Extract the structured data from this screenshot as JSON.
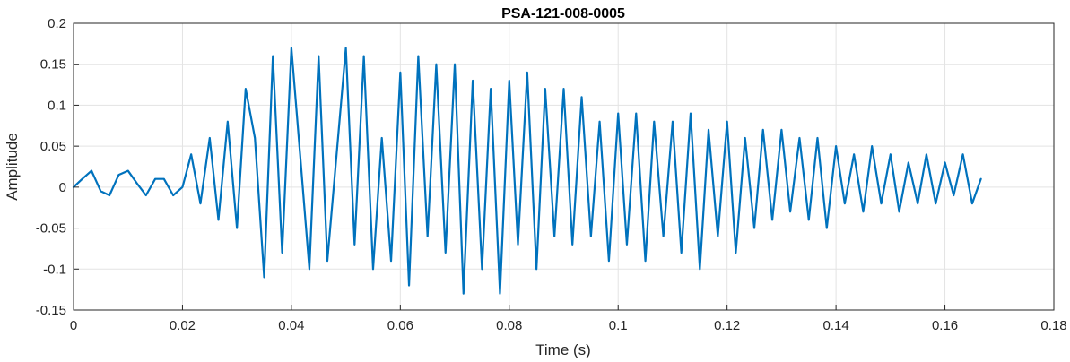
{
  "chart_data": {
    "type": "line",
    "title": "PSA-121-008-0005",
    "xlabel": "Time (s)",
    "ylabel": "Amplitude",
    "xlim": [
      0,
      0.18
    ],
    "ylim": [
      -0.15,
      0.2
    ],
    "grid": true,
    "x_ticks": [
      {
        "value": 0,
        "label": "0"
      },
      {
        "value": 0.02,
        "label": "0.02"
      },
      {
        "value": 0.04,
        "label": "0.04"
      },
      {
        "value": 0.06,
        "label": "0.06"
      },
      {
        "value": 0.08,
        "label": "0.08"
      },
      {
        "value": 0.1,
        "label": "0.1"
      },
      {
        "value": 0.12,
        "label": "0.12"
      },
      {
        "value": 0.14,
        "label": "0.14"
      },
      {
        "value": 0.16,
        "label": "0.16"
      },
      {
        "value": 0.18,
        "label": "0.18"
      }
    ],
    "y_ticks": [
      {
        "value": -0.15,
        "label": "-0.15"
      },
      {
        "value": -0.1,
        "label": "-0.1"
      },
      {
        "value": -0.05,
        "label": "-0.05"
      },
      {
        "value": 0,
        "label": "0"
      },
      {
        "value": 0.05,
        "label": "0.05"
      },
      {
        "value": 0.1,
        "label": "0.1"
      },
      {
        "value": 0.15,
        "label": "0.15"
      },
      {
        "value": 0.2,
        "label": "0.2"
      }
    ],
    "series": [
      {
        "color": "#0072BD",
        "x": [
          0,
          0.0016,
          0.0033,
          0.005,
          0.0066,
          0.0083,
          0.01,
          0.0116,
          0.0133,
          0.015,
          0.0166,
          0.0183,
          0.02,
          0.0216,
          0.0233,
          0.025,
          0.0266,
          0.0283,
          0.03,
          0.0316,
          0.0333,
          0.035,
          0.0366,
          0.0383,
          0.04,
          0.0416,
          0.0433,
          0.045,
          0.0466,
          0.0483,
          0.05,
          0.0516,
          0.0533,
          0.055,
          0.0566,
          0.0583,
          0.06,
          0.0616,
          0.0633,
          0.065,
          0.0666,
          0.0683,
          0.07,
          0.0716,
          0.0733,
          0.075,
          0.0766,
          0.0783,
          0.08,
          0.0816,
          0.0833,
          0.085,
          0.0866,
          0.0883,
          0.09,
          0.0916,
          0.0933,
          0.095,
          0.0966,
          0.0983,
          0.1,
          0.1016,
          0.1033,
          0.105,
          0.1066,
          0.1083,
          0.11,
          0.1116,
          0.1133,
          0.115,
          0.1166,
          0.1183,
          0.12,
          0.1216,
          0.1233,
          0.125,
          0.1266,
          0.1283,
          0.13,
          0.1316,
          0.1333,
          0.135,
          0.1366,
          0.1383,
          0.14,
          0.1416,
          0.1433,
          0.145,
          0.1466,
          0.1483,
          0.15,
          0.1516,
          0.1533,
          0.155,
          0.1566,
          0.1583,
          0.16,
          0.1616,
          0.1633,
          0.165,
          0.1666
        ],
        "y": [
          0.0,
          0.01,
          0.02,
          -0.005,
          -0.01,
          0.015,
          0.02,
          0.005,
          -0.01,
          0.01,
          0.01,
          -0.01,
          0.0,
          0.04,
          -0.02,
          0.06,
          -0.04,
          0.08,
          -0.05,
          0.12,
          0.06,
          -0.11,
          0.16,
          -0.08,
          0.17,
          0.04,
          -0.1,
          0.16,
          -0.09,
          0.04,
          0.17,
          -0.07,
          0.16,
          -0.1,
          0.06,
          -0.09,
          0.14,
          -0.12,
          0.16,
          -0.06,
          0.15,
          -0.08,
          0.15,
          -0.13,
          0.13,
          -0.1,
          0.12,
          -0.13,
          0.13,
          -0.07,
          0.14,
          -0.1,
          0.12,
          -0.06,
          0.12,
          -0.07,
          0.11,
          -0.06,
          0.08,
          -0.09,
          0.09,
          -0.07,
          0.09,
          -0.09,
          0.08,
          -0.06,
          0.08,
          -0.08,
          0.09,
          -0.1,
          0.07,
          -0.06,
          0.08,
          -0.08,
          0.06,
          -0.05,
          0.07,
          -0.04,
          0.07,
          -0.03,
          0.06,
          -0.04,
          0.06,
          -0.05,
          0.05,
          -0.02,
          0.04,
          -0.03,
          0.05,
          -0.02,
          0.04,
          -0.03,
          0.03,
          -0.02,
          0.04,
          -0.02,
          0.03,
          -0.01,
          0.04,
          -0.02,
          0.01
        ]
      }
    ]
  }
}
